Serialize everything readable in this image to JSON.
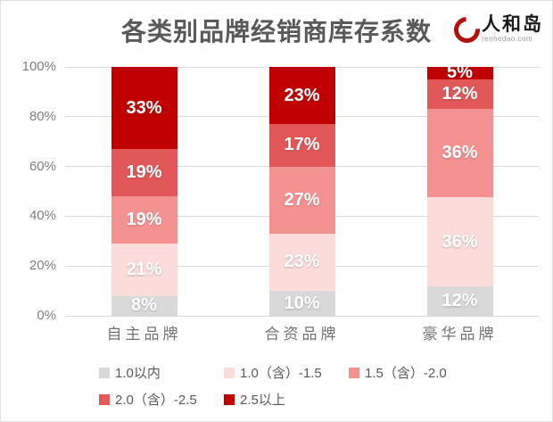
{
  "header": {
    "logo": {
      "brand": "人和岛",
      "domain": "renhedao.com",
      "accent_color": "#b30f0f"
    }
  },
  "chart_data": {
    "type": "bar",
    "variant": "stacked-100-percent",
    "title": "各类别品牌经销商库存系数",
    "categories": [
      "自主品牌",
      "合资品牌",
      "豪华品牌"
    ],
    "series": [
      {
        "name": "1.0以内",
        "color": "#D9D9D9",
        "values": [
          8,
          10,
          12
        ]
      },
      {
        "name": "1.0（含）-1.5",
        "color": "#FBDCDB",
        "values": [
          21,
          23,
          36
        ]
      },
      {
        "name": "1.5（含）-2.0",
        "color": "#F49292",
        "values": [
          19,
          27,
          36
        ]
      },
      {
        "name": "2.0（含）-2.5",
        "color": "#E25757",
        "values": [
          19,
          17,
          12
        ]
      },
      {
        "name": "2.5以上",
        "color": "#C00000",
        "values": [
          33,
          23,
          5
        ]
      }
    ],
    "y_ticks": [
      "0%",
      "20%",
      "40%",
      "60%",
      "80%",
      "100%"
    ],
    "ylim": [
      0,
      100
    ],
    "grid": true,
    "gridline_color": "#dbdbdb",
    "axis_text_color": "#7f7f7f",
    "category_text_color": "#737373",
    "bar_label_color": "#ffffff",
    "title_color": "#595959",
    "legend_position": "bottom"
  }
}
